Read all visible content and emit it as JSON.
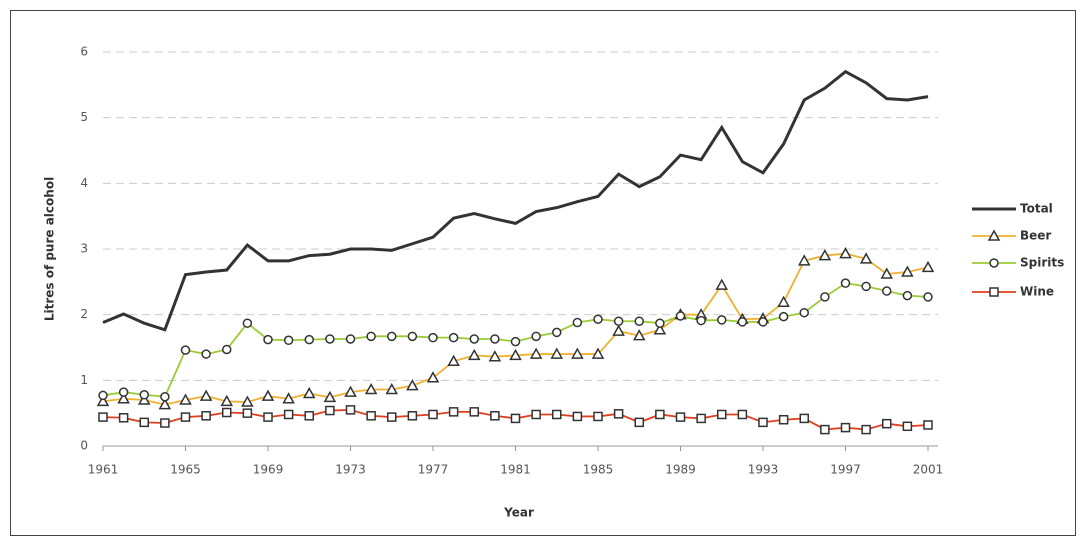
{
  "chart_data": {
    "type": "line",
    "x_label": "Year",
    "y_label": "Litres of pure alcohol",
    "x": [
      1961,
      1962,
      1963,
      1964,
      1965,
      1966,
      1967,
      1968,
      1969,
      1970,
      1971,
      1972,
      1973,
      1974,
      1975,
      1976,
      1977,
      1978,
      1979,
      1980,
      1981,
      1982,
      1983,
      1984,
      1985,
      1986,
      1987,
      1988,
      1989,
      1990,
      1991,
      1992,
      1993,
      1994,
      1995,
      1996,
      1997,
      1998,
      1999,
      2000,
      2001
    ],
    "xlim": [
      1961,
      2001
    ],
    "xticks": [
      1961,
      1965,
      1969,
      1973,
      1977,
      1981,
      1985,
      1989,
      1993,
      1997,
      2001
    ],
    "ylim": [
      0,
      6
    ],
    "yticks": [
      0,
      1,
      2,
      3,
      4,
      5,
      6
    ],
    "grid": true,
    "legend": "right",
    "series": [
      {
        "name": "Total",
        "color": "#333333",
        "marker": "none",
        "values": [
          1.88,
          2.01,
          1.87,
          1.77,
          2.61,
          2.65,
          2.68,
          3.06,
          2.82,
          2.82,
          2.9,
          2.92,
          3.0,
          3.0,
          2.98,
          3.08,
          3.18,
          3.47,
          3.54,
          3.46,
          3.39,
          3.57,
          3.63,
          3.72,
          3.8,
          4.14,
          3.95,
          4.1,
          4.43,
          4.36,
          4.85,
          4.33,
          4.16,
          4.6,
          5.27,
          5.45,
          5.7,
          5.53,
          5.29,
          5.27,
          5.32
        ]
      },
      {
        "name": "Beer",
        "color": "#f0b030",
        "marker": "triangle",
        "values": [
          0.68,
          0.72,
          0.7,
          0.63,
          0.7,
          0.76,
          0.68,
          0.67,
          0.76,
          0.72,
          0.8,
          0.74,
          0.82,
          0.86,
          0.86,
          0.92,
          1.04,
          1.29,
          1.38,
          1.36,
          1.38,
          1.4,
          1.4,
          1.4,
          1.4,
          1.75,
          1.68,
          1.77,
          2.0,
          2.0,
          2.45,
          1.93,
          1.94,
          2.19,
          2.82,
          2.9,
          2.93,
          2.85,
          2.62,
          2.65,
          2.72
        ]
      },
      {
        "name": "Spirits",
        "color": "#99cc33",
        "marker": "circle",
        "values": [
          0.77,
          0.82,
          0.78,
          0.75,
          1.46,
          1.4,
          1.47,
          1.87,
          1.62,
          1.61,
          1.62,
          1.63,
          1.63,
          1.67,
          1.67,
          1.67,
          1.65,
          1.65,
          1.63,
          1.63,
          1.59,
          1.67,
          1.73,
          1.88,
          1.93,
          1.9,
          1.9,
          1.87,
          1.98,
          1.91,
          1.92,
          1.89,
          1.89,
          1.97,
          2.03,
          2.27,
          2.48,
          2.43,
          2.36,
          2.29,
          2.27
        ]
      },
      {
        "name": "Wine",
        "color": "#e04020",
        "marker": "square",
        "values": [
          0.44,
          0.43,
          0.36,
          0.35,
          0.44,
          0.46,
          0.51,
          0.5,
          0.44,
          0.48,
          0.46,
          0.54,
          0.55,
          0.46,
          0.44,
          0.46,
          0.48,
          0.52,
          0.52,
          0.46,
          0.42,
          0.48,
          0.48,
          0.45,
          0.45,
          0.49,
          0.36,
          0.48,
          0.44,
          0.42,
          0.48,
          0.48,
          0.36,
          0.4,
          0.42,
          0.25,
          0.28,
          0.25,
          0.34,
          0.3,
          0.32
        ]
      }
    ]
  }
}
